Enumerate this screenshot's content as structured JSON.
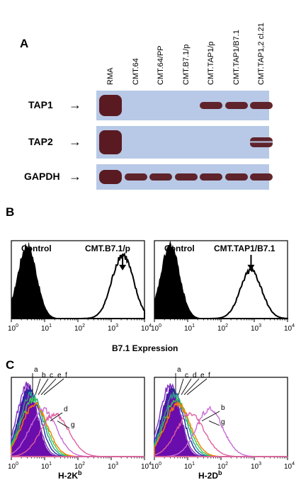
{
  "panelA": {
    "letter": "A",
    "lanes": [
      "RMA",
      "CMT.64",
      "CMT.64/PP",
      "CMT.B7.1/p",
      "CMT.TAP1/p",
      "CMT.TAP1/B7.1",
      "CMT.TAP1,2 cl.21"
    ],
    "rows": [
      {
        "label": "TAP1",
        "band_lanes": [
          0,
          4,
          5,
          6
        ]
      },
      {
        "label": "TAP2",
        "band_lanes": [
          0,
          6
        ]
      },
      {
        "label": "GAPDH",
        "band_lanes": [
          0,
          1,
          2,
          3,
          4,
          5,
          6
        ]
      }
    ],
    "arrow": "→",
    "colors": {
      "membrane": "#b7c9e6",
      "band": "#5a1a22"
    }
  },
  "panelB": {
    "letter": "B",
    "left": {
      "control_label": "Control",
      "sample_label": "CMT.B7.1/p"
    },
    "right": {
      "control_label": "Control",
      "sample_label": "CMT.TAP1/B7.1"
    },
    "xlabel": "B7.1 Expression",
    "tick_labels": [
      "0",
      "1",
      "2",
      "3",
      "4"
    ],
    "tick_base": "10"
  },
  "panelC": {
    "letter": "C",
    "left": {
      "xlabel_main": "H-2K",
      "xlabel_sup": "b",
      "curve_labels": [
        "a",
        "b",
        "c",
        "e",
        "f",
        "d",
        "g"
      ]
    },
    "right": {
      "xlabel_main": "H-2D",
      "xlabel_sup": "b",
      "curve_labels": [
        "a",
        "c",
        "d",
        "e",
        "f",
        "b",
        "g"
      ]
    },
    "tick_labels": [
      "0",
      "1",
      "2",
      "3",
      "4"
    ],
    "tick_base": "10"
  },
  "chart_data": [
    {
      "type": "area",
      "title": "",
      "xlabel": "B7.1 Expression",
      "xscale": "log",
      "xlim": [
        1,
        10000
      ],
      "series": [
        {
          "name": "Control",
          "peak_x": 3,
          "style": "filled black"
        },
        {
          "name": "CMT.B7.1/p",
          "peak_x": 2200,
          "style": "open outline"
        }
      ]
    },
    {
      "type": "area",
      "title": "",
      "xlabel": "B7.1 Expression",
      "xscale": "log",
      "xlim": [
        1,
        10000
      ],
      "series": [
        {
          "name": "Control",
          "peak_x": 3,
          "style": "filled black"
        },
        {
          "name": "CMT.TAP1/B7.1",
          "peak_x": 800,
          "style": "open outline"
        }
      ]
    },
    {
      "type": "area",
      "xlabel": "H-2Kb",
      "xscale": "log",
      "xlim": [
        1,
        10000
      ],
      "series": [
        {
          "name": "a",
          "peak_x": 3
        },
        {
          "name": "b",
          "peak_x": 3.5
        },
        {
          "name": "c",
          "peak_x": 4
        },
        {
          "name": "e",
          "peak_x": 4.5
        },
        {
          "name": "f",
          "peak_x": 5
        },
        {
          "name": "d",
          "peak_x": 9
        },
        {
          "name": "g",
          "peak_x": 20
        }
      ]
    },
    {
      "type": "area",
      "xlabel": "H-2Db",
      "xscale": "log",
      "xlim": [
        1,
        10000
      ],
      "series": [
        {
          "name": "a",
          "peak_x": 3
        },
        {
          "name": "c",
          "peak_x": 3.5
        },
        {
          "name": "d",
          "peak_x": 4
        },
        {
          "name": "e",
          "peak_x": 4.5
        },
        {
          "name": "f",
          "peak_x": 5
        },
        {
          "name": "b",
          "peak_x": 45
        },
        {
          "name": "g",
          "peak_x": 12
        }
      ]
    }
  ]
}
